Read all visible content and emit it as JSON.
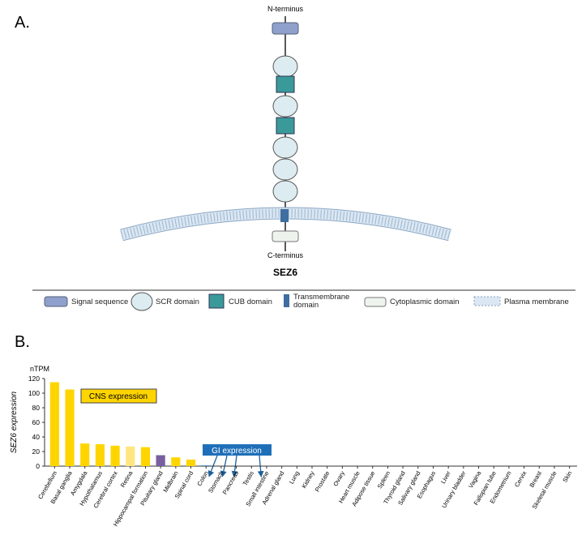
{
  "panel_a": {
    "label": "A.",
    "n_terminus": "N-terminus",
    "c_terminus": "C-terminus",
    "protein": "SEZ6"
  },
  "legend": [
    "Signal sequence",
    "SCR domain",
    "CUB domain",
    "Transmembrane domain",
    "Cytoplasmic domain",
    "Plasma membrane"
  ],
  "panel_b": {
    "label": "B."
  },
  "chart_data": {
    "type": "bar",
    "y_label": "SEZ6 expression",
    "y_unit": "nTPM",
    "annotations": [
      "CNS expression",
      "GI expression"
    ],
    "categories": [
      "Cerebellum",
      "Basal ganglia",
      "Amygdala",
      "Hypothalamus",
      "Cerebral cortex",
      "Retina",
      "Hippocampal formation",
      "Pituitary gland",
      "Midbrain",
      "Spinal cord",
      "Colon",
      "Stomach",
      "Pancreas",
      "Testis",
      "Small intestine",
      "Adrenal gland",
      "Lung",
      "Kidney",
      "Prostate",
      "Ovary",
      "Heart muscle",
      "Adipose tissue",
      "Spleen",
      "Thyroid gland",
      "Salivary gland",
      "Esophagus",
      "Liver",
      "Urinary bladder",
      "Vagina",
      "Fallopian tube",
      "Endometrium",
      "Cervix",
      "Breast",
      "Skeletal muscle",
      "Skin"
    ],
    "values": [
      115,
      105,
      31,
      30,
      28,
      27,
      26,
      15,
      12,
      9,
      1,
      0,
      0,
      0,
      0,
      0,
      0,
      0,
      0,
      0,
      0,
      0,
      0,
      0,
      0,
      0,
      0,
      0,
      0,
      0,
      0,
      0,
      0,
      0,
      0
    ],
    "colors": [
      "#ffd500",
      "#ffd500",
      "#ffd500",
      "#ffd500",
      "#ffd500",
      "#ffe680",
      "#ffd500",
      "#7a5fa0",
      "#ffd500",
      "#ffd500",
      "#3f7fb5",
      "#3f7fb5",
      "#3f7fb5",
      "#3f7fb5",
      "#3f7fb5",
      "#3f7fb5",
      "#3f7fb5",
      "#3f7fb5",
      "#3f7fb5",
      "#3f7fb5",
      "#3f7fb5",
      "#3f7fb5",
      "#3f7fb5",
      "#3f7fb5",
      "#3f7fb5",
      "#3f7fb5",
      "#3f7fb5",
      "#3f7fb5",
      "#3f7fb5",
      "#3f7fb5",
      "#3f7fb5",
      "#3f7fb5",
      "#3f7fb5",
      "#3f7fb5",
      "#3f7fb5"
    ],
    "ylim": [
      0,
      120
    ],
    "yticks": [
      0,
      20,
      40,
      60,
      80,
      100,
      120
    ]
  }
}
